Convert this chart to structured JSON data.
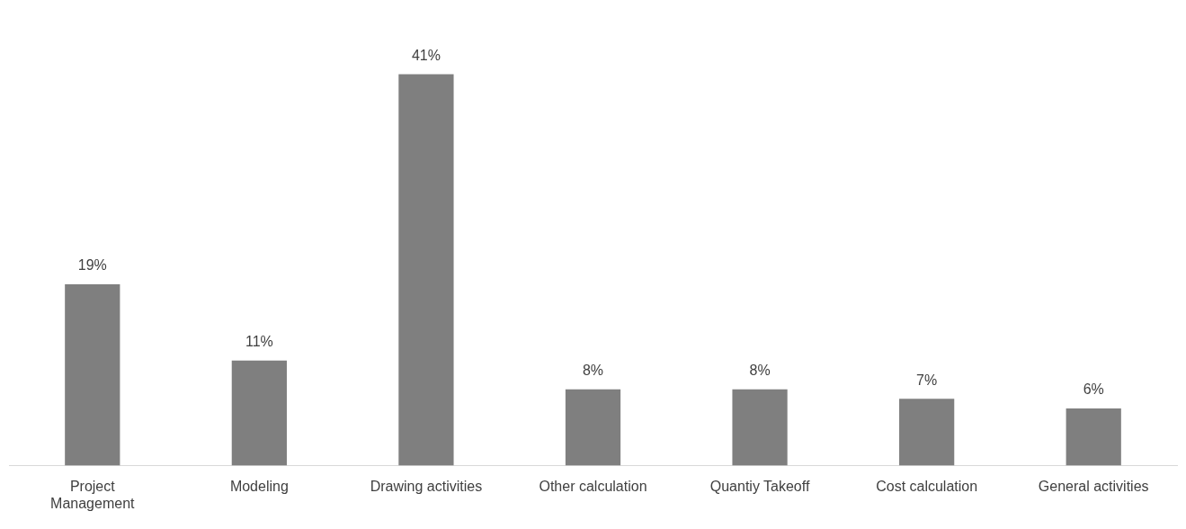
{
  "chart_data": {
    "type": "bar",
    "categories": [
      "Project Management",
      "Modeling",
      "Drawing activities",
      "Other calculation",
      "Quantiy Takeoff",
      "Cost calculation",
      "General activities"
    ],
    "values": [
      19,
      11,
      41,
      8,
      8,
      7,
      6
    ],
    "color": "#7f7f7f",
    "value_labels": [
      "19%",
      "11%",
      "41%",
      "8%",
      "8%",
      "7%",
      "6%"
    ],
    "grid": false,
    "legend": false
  }
}
